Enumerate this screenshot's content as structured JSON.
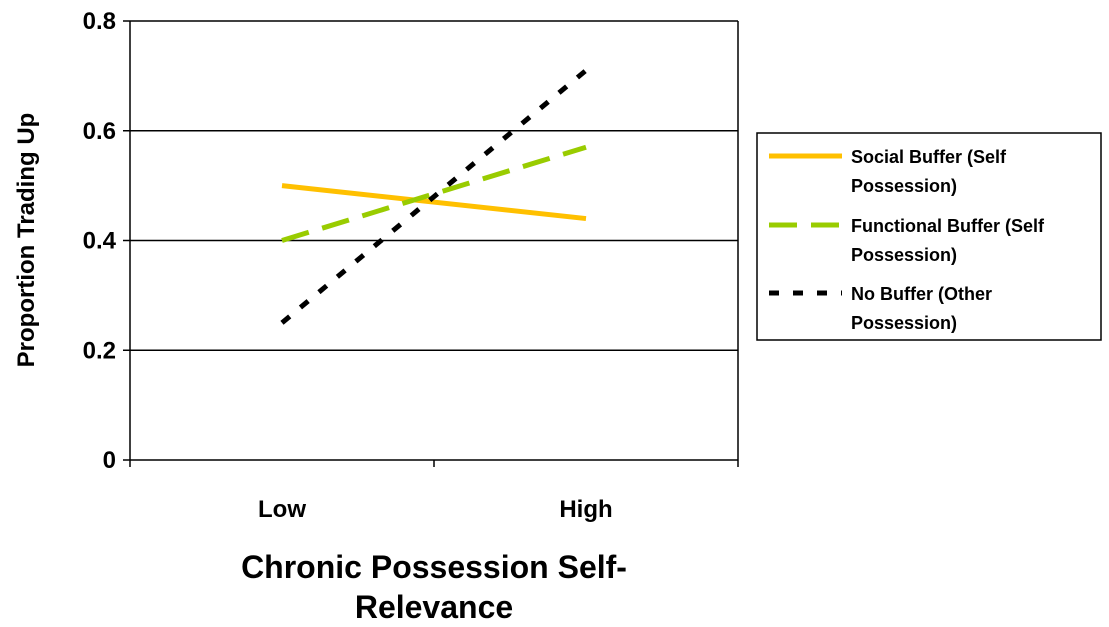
{
  "chart_data": {
    "type": "line",
    "title": "",
    "xlabel_lines": [
      "Chronic Possession Self-",
      "Relevance"
    ],
    "ylabel": "Proportion Trading Up",
    "categories": [
      "Low",
      "High"
    ],
    "ylim": [
      0,
      0.8
    ],
    "yticks": [
      0,
      0.2,
      0.4,
      0.6,
      0.8
    ],
    "ytick_labels": [
      "0",
      "0.2",
      "0.4",
      "0.6",
      "0.8"
    ],
    "grid": "horizontal major gridlines",
    "legend_position": "right",
    "series": [
      {
        "name_lines": [
          "Social Buffer (Self",
          "Possession)"
        ],
        "values": [
          0.5,
          0.44
        ],
        "color": "#FFC000",
        "dash": "solid"
      },
      {
        "name_lines": [
          "Functional Buffer (Self",
          "Possession)"
        ],
        "values": [
          0.4,
          0.57
        ],
        "color": "#99CC00",
        "dash": "long-dash"
      },
      {
        "name_lines": [
          "No Buffer (Other",
          "Possession)"
        ],
        "values": [
          0.25,
          0.71
        ],
        "color": "#000000",
        "dash": "dotted"
      }
    ]
  }
}
